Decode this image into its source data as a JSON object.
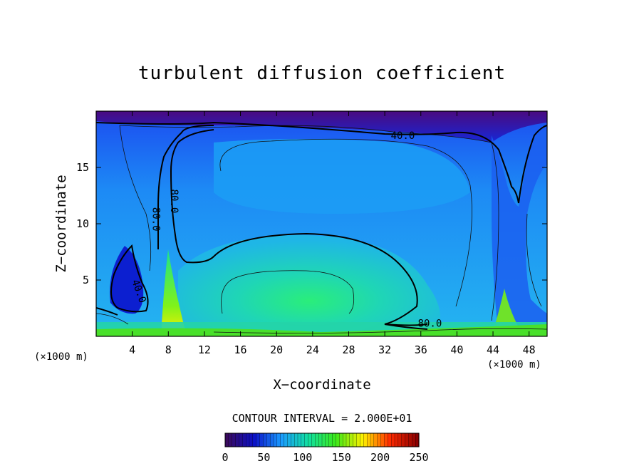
{
  "chart_data": {
    "type": "heatmap",
    "title": "turbulent diffusion coefficient",
    "xlabel": "X−coordinate",
    "ylabel": "Z−coordinate",
    "x_unit_left": "(×1000 m)",
    "x_unit_right": "(×1000 m)",
    "xlim": [
      0,
      50
    ],
    "ylim": [
      0,
      20
    ],
    "x_ticks": [
      "4",
      "8",
      "12",
      "16",
      "20",
      "24",
      "28",
      "32",
      "36",
      "40",
      "44",
      "48"
    ],
    "y_ticks": [
      "5",
      "10",
      "15"
    ],
    "contour_labels": [
      {
        "text": "40.0",
        "x": 34,
        "z": 17.8
      },
      {
        "text": "80.0",
        "x": 6.6,
        "z": 10.4
      },
      {
        "text": "80.0",
        "x": 8.6,
        "z": 12.0
      },
      {
        "text": "40.0",
        "x": 4.7,
        "z": 4.0
      },
      {
        "text": "80.0",
        "x": 37,
        "z": 1.1
      }
    ],
    "contour_interval_text": "CONTOUR INTERVAL = 2.000E+01",
    "colorbar": {
      "min": 0,
      "max": 250,
      "tick_labels": [
        "0",
        "50",
        "100",
        "150",
        "200",
        "250"
      ],
      "colors": [
        "#3a0a5e",
        "#0b10c8",
        "#1a9bff",
        "#11e0a0",
        "#3be81a",
        "#fff200",
        "#ff2a00",
        "#8a0000"
      ]
    },
    "grid": false,
    "legend": "colorbar-bottom"
  }
}
